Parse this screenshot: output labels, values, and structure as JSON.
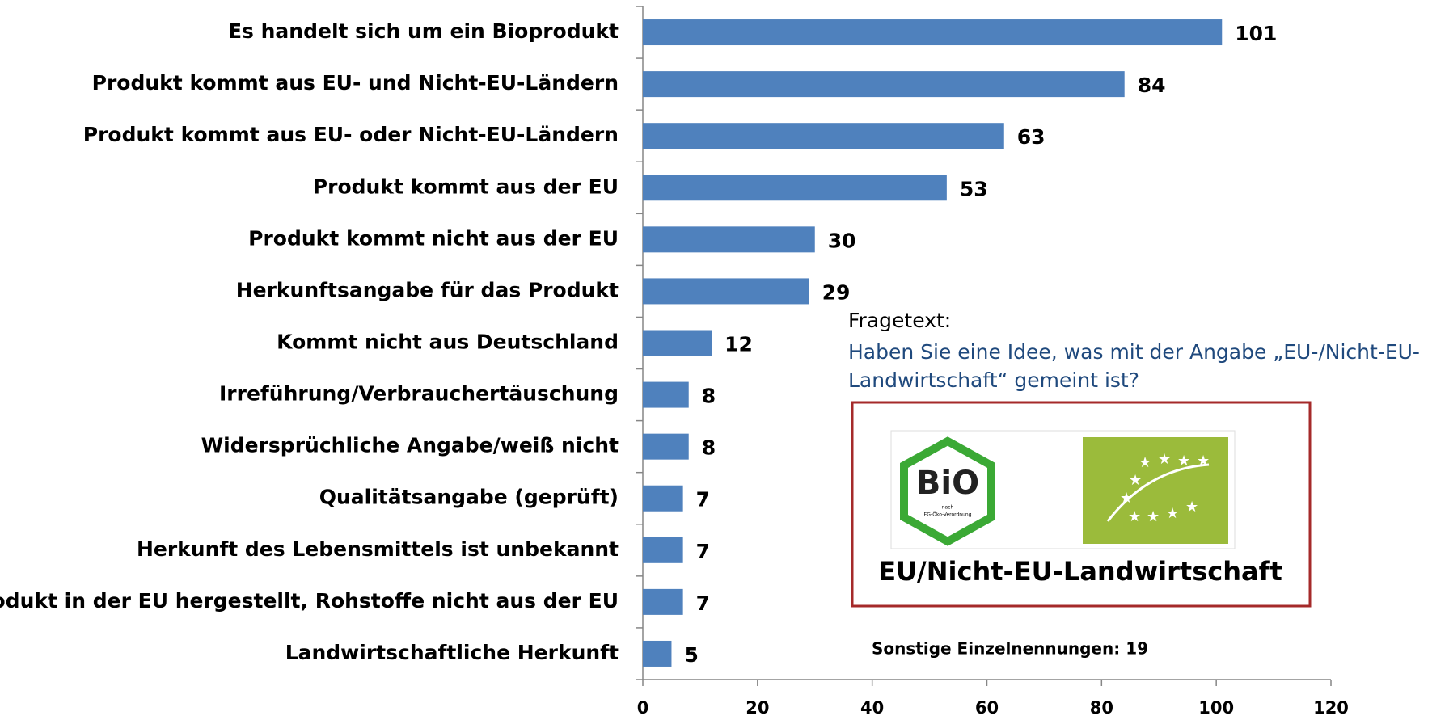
{
  "chart_data": {
    "type": "bar",
    "orientation": "horizontal",
    "categories": [
      "Es handelt sich um ein Bioprodukt",
      "Produkt kommt aus EU- und Nicht-EU-Ländern",
      "Produkt kommt aus EU- oder Nicht-EU-Ländern",
      "Produkt kommt aus der EU",
      "Produkt kommt nicht aus der EU",
      "Herkunftsangabe für das Produkt",
      "Kommt nicht aus Deutschland",
      "Irreführung/Verbrauchertäuschung",
      "Widersprüchliche Angabe/weiß nicht",
      "Qualitätsangabe (geprüft)",
      "Herkunft des Lebensmittels ist unbekannt",
      "Produkt in der EU hergestellt, Rohstoffe nicht aus der EU",
      "Landwirtschaftliche Herkunft"
    ],
    "values": [
      101,
      84,
      63,
      53,
      30,
      29,
      12,
      8,
      8,
      7,
      7,
      7,
      5
    ],
    "color": "#4f81bd",
    "xlim": [
      0,
      120
    ],
    "xticks": [
      0,
      20,
      40,
      60,
      80,
      100,
      120
    ],
    "question_label": "Fragetext:",
    "question_lines": [
      "Haben Sie eine Idee, was mit der Angabe „EU-/Nicht-EU-",
      "Landwirtschaft“ gemeint ist?"
    ],
    "logo_text": "BiO",
    "logo_subtext": [
      "nach",
      "EG-Öko-Verordnung"
    ],
    "logo_caption": "EU/Nicht-EU-Landwirtschaft",
    "note": "Sonstige Einzelnennungen: 19"
  }
}
